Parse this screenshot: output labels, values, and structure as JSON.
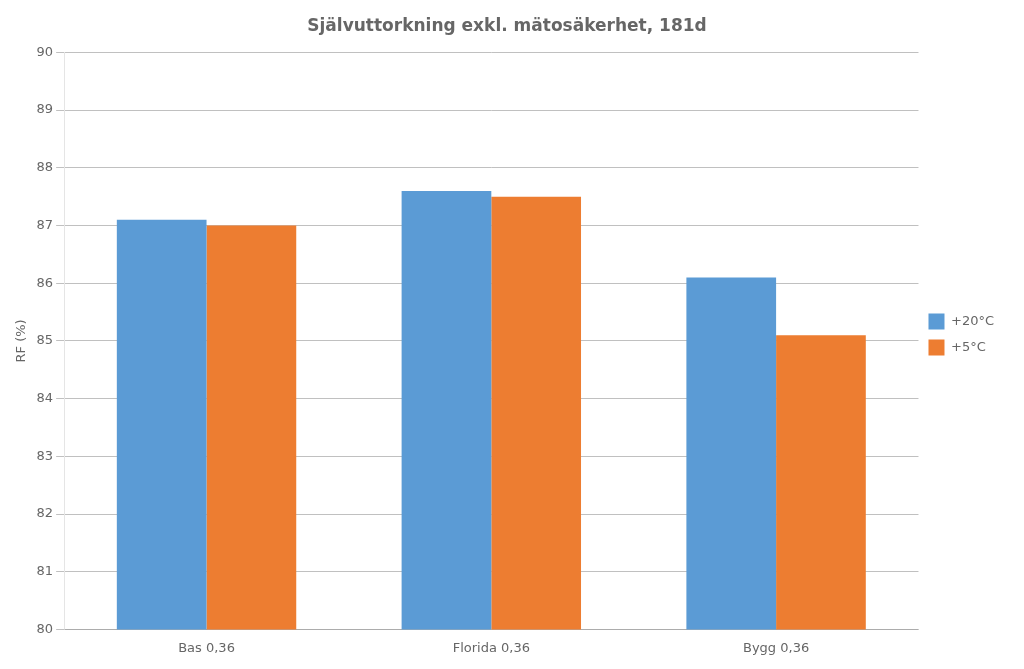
{
  "chart_data": {
    "type": "bar",
    "title": "Självuttorkning exkl. mätosäkerhet, 181d",
    "categories": [
      "Bas 0,36",
      "Florida 0,36",
      "Bygg 0,36"
    ],
    "series": [
      {
        "name": "+20°C",
        "color": "#5B9BD5",
        "values": [
          87.1,
          87.6,
          86.1
        ]
      },
      {
        "name": "+5°C",
        "color": "#ED7D31",
        "values": [
          87.0,
          87.5,
          85.1
        ]
      }
    ],
    "ylabel": "RF (%)",
    "ylim": [
      80,
      90
    ],
    "yticks": [
      80,
      81,
      82,
      83,
      84,
      85,
      86,
      87,
      88,
      89,
      90
    ],
    "grid": true,
    "legend": "right"
  }
}
